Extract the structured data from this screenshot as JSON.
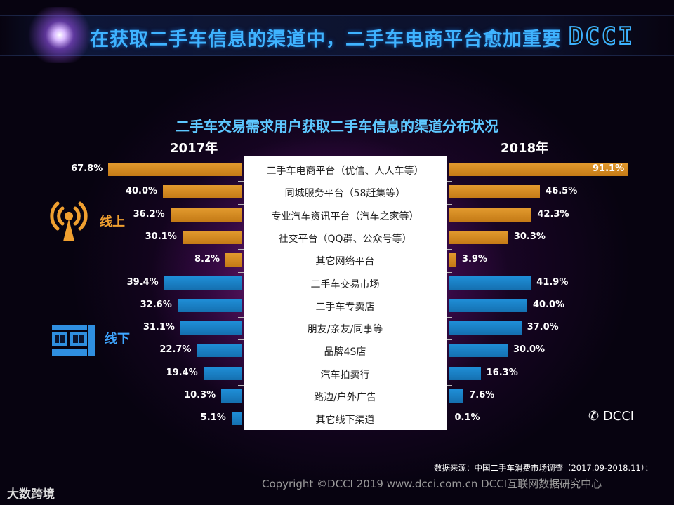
{
  "header": {
    "title": "在获取二手车信息的渠道中，二手车电商平台愈加重要",
    "logo": "DCCI"
  },
  "chart_data": {
    "type": "bar",
    "title": "二手车交易需求用户获取二手车信息的渠道分布状况",
    "groups": [
      {
        "label": "线上",
        "color": "#e29a2e"
      },
      {
        "label": "线下",
        "color": "#1f8fd8"
      }
    ],
    "series": [
      {
        "name": "2017年"
      },
      {
        "name": "2018年"
      }
    ],
    "categories": [
      {
        "label": "二手车电商平台（优信、人人车等）",
        "group": 0,
        "v2017": 67.8,
        "v2018": 91.1,
        "l2017": "67.8%",
        "l2018": "91.1%"
      },
      {
        "label": "同城服务平台（58赶集等）",
        "group": 0,
        "v2017": 40.0,
        "v2018": 46.5,
        "l2017": "40.0%",
        "l2018": "46.5%"
      },
      {
        "label": "专业汽车资讯平台（汽车之家等）",
        "group": 0,
        "v2017": 36.2,
        "v2018": 42.3,
        "l2017": "36.2%",
        "l2018": "42.3%"
      },
      {
        "label": "社交平台（QQ群、公众号等）",
        "group": 0,
        "v2017": 30.1,
        "v2018": 30.3,
        "l2017": "30.1%",
        "l2018": "30.3%"
      },
      {
        "label": "其它网络平台",
        "group": 0,
        "v2017": 8.2,
        "v2018": 3.9,
        "l2017": "8.2%",
        "l2018": "3.9%"
      },
      {
        "label": "二手车交易市场",
        "group": 1,
        "v2017": 39.4,
        "v2018": 41.9,
        "l2017": "39.4%",
        "l2018": "41.9%"
      },
      {
        "label": "二手车专卖店",
        "group": 1,
        "v2017": 32.6,
        "v2018": 40.0,
        "l2017": "32.6%",
        "l2018": "40.0%"
      },
      {
        "label": "朋友/亲友/同事等",
        "group": 1,
        "v2017": 31.1,
        "v2018": 37.0,
        "l2017": "31.1%",
        "l2018": "37.0%"
      },
      {
        "label": "品牌4S店",
        "group": 1,
        "v2017": 22.7,
        "v2018": 30.0,
        "l2017": "22.7%",
        "l2018": "30.0%"
      },
      {
        "label": "汽车拍卖行",
        "group": 1,
        "v2017": 19.4,
        "v2018": 16.3,
        "l2017": "19.4%",
        "l2018": "16.3%"
      },
      {
        "label": "路边/户外广告",
        "group": 1,
        "v2017": 10.3,
        "v2018": 7.6,
        "l2017": "10.3%",
        "l2018": "7.6%"
      },
      {
        "label": "其它线下渠道",
        "group": 1,
        "v2017": 5.1,
        "v2018": 0.1,
        "l2017": "5.1%",
        "l2018": "0.1%"
      }
    ],
    "xlim": [
      0,
      100
    ]
  },
  "footer": {
    "source": "数据来源：中国二手车消费市场调查（2017.09-2018.11）：",
    "copyright": "Copyright ©DCCI 2019  www.dcci.com.cn   DCCI互联网数据研究中心",
    "bottom_logo": "大数跨境",
    "wechat": "DCCI"
  }
}
